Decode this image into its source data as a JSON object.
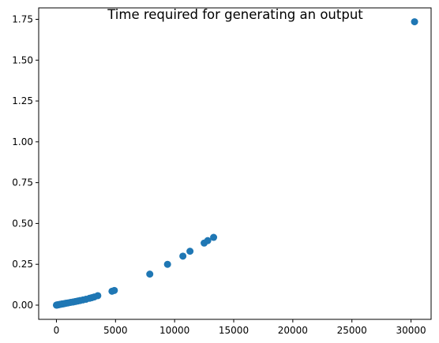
{
  "chart_data": {
    "type": "scatter",
    "title": "Time required for generating an output",
    "xlabel": "",
    "ylabel": "",
    "xlim": [
      -1500,
      31700
    ],
    "ylim": [
      -0.087,
      1.82
    ],
    "x_ticks": [
      0,
      5000,
      10000,
      15000,
      20000,
      25000,
      30000
    ],
    "y_ticks": [
      0.0,
      0.25,
      0.5,
      0.75,
      1.0,
      1.25,
      1.5,
      1.75
    ],
    "y_tick_labels": [
      "0.00",
      "0.25",
      "0.50",
      "0.75",
      "1.00",
      "1.25",
      "1.50",
      "1.75"
    ],
    "grid": false,
    "legend": "none",
    "marker_color": "#1f77b4",
    "points": [
      {
        "x": 0,
        "y": 0.0
      },
      {
        "x": 30,
        "y": 0.001
      },
      {
        "x": 60,
        "y": 0.001
      },
      {
        "x": 100,
        "y": 0.002
      },
      {
        "x": 150,
        "y": 0.002
      },
      {
        "x": 200,
        "y": 0.003
      },
      {
        "x": 260,
        "y": 0.004
      },
      {
        "x": 320,
        "y": 0.005
      },
      {
        "x": 400,
        "y": 0.006
      },
      {
        "x": 480,
        "y": 0.007
      },
      {
        "x": 560,
        "y": 0.008
      },
      {
        "x": 650,
        "y": 0.009
      },
      {
        "x": 750,
        "y": 0.011
      },
      {
        "x": 850,
        "y": 0.012
      },
      {
        "x": 1000,
        "y": 0.014
      },
      {
        "x": 1200,
        "y": 0.017
      },
      {
        "x": 1400,
        "y": 0.019
      },
      {
        "x": 1600,
        "y": 0.022
      },
      {
        "x": 1800,
        "y": 0.025
      },
      {
        "x": 2000,
        "y": 0.028
      },
      {
        "x": 2250,
        "y": 0.032
      },
      {
        "x": 2500,
        "y": 0.036
      },
      {
        "x": 2800,
        "y": 0.042
      },
      {
        "x": 3000,
        "y": 0.046
      },
      {
        "x": 3200,
        "y": 0.05
      },
      {
        "x": 3500,
        "y": 0.058
      },
      {
        "x": 4700,
        "y": 0.085
      },
      {
        "x": 4900,
        "y": 0.09
      },
      {
        "x": 7900,
        "y": 0.19
      },
      {
        "x": 9400,
        "y": 0.25
      },
      {
        "x": 10700,
        "y": 0.3
      },
      {
        "x": 11300,
        "y": 0.33
      },
      {
        "x": 12500,
        "y": 0.38
      },
      {
        "x": 12800,
        "y": 0.395
      },
      {
        "x": 13300,
        "y": 0.415
      },
      {
        "x": 30300,
        "y": 1.735
      }
    ]
  }
}
